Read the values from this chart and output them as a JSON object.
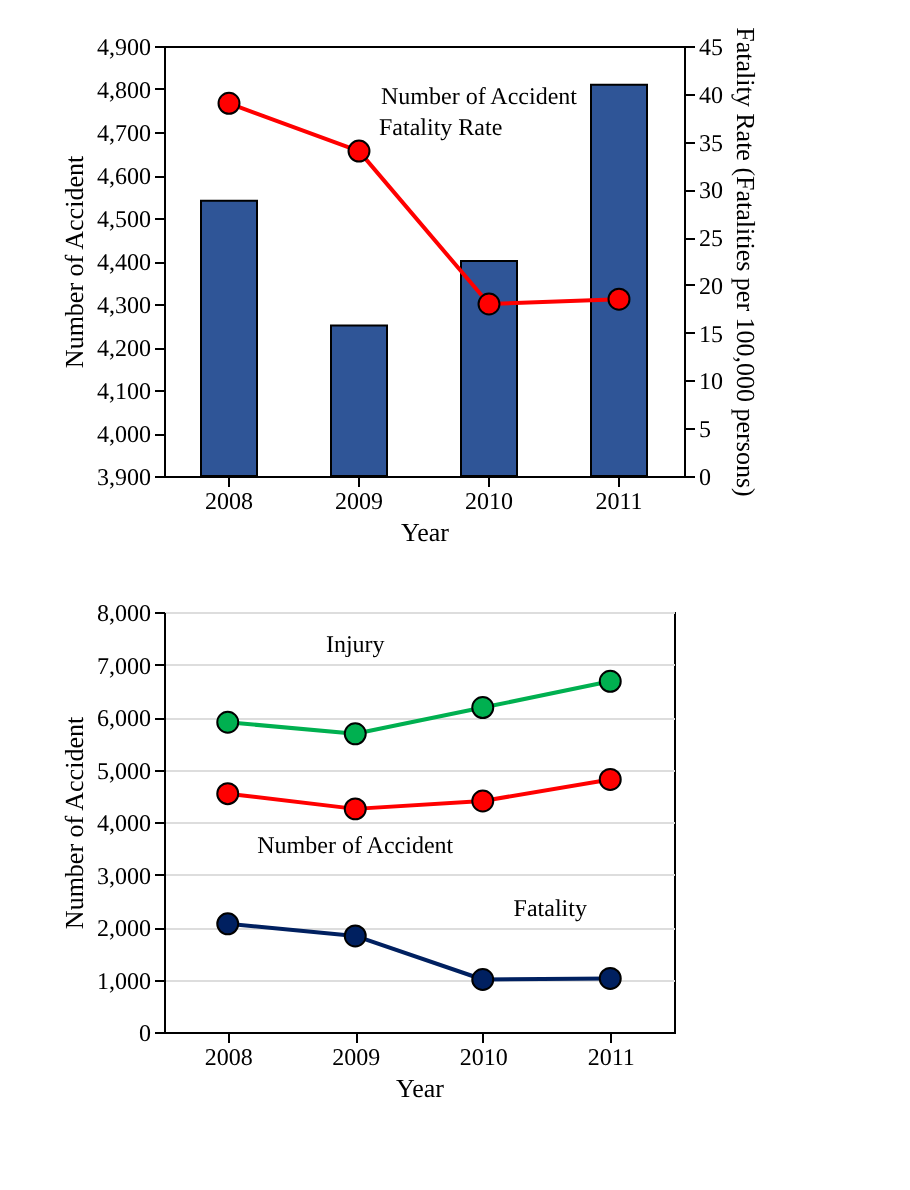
{
  "chart_data": [
    {
      "type": "bar",
      "categories": [
        "2008",
        "2009",
        "2010",
        "2011"
      ],
      "xlabel": "Year",
      "ylabel": "Number of Accident",
      "y2label": "Fatality Rate (Fatalities per 100,000 persons)",
      "series": [
        {
          "name": "Number of Accident",
          "type": "bar",
          "color": "#2f5597",
          "values": [
            4540,
            4250,
            4400,
            4810
          ]
        },
        {
          "name": "Fatality Rate",
          "type": "line",
          "axis": "y2",
          "color": "#ff0000",
          "marker": "circle",
          "values": [
            39,
            34,
            18,
            18.5
          ]
        }
      ],
      "ylim": [
        3900,
        4900
      ],
      "yticks": [
        {
          "value": 3900,
          "label": "3,900"
        },
        {
          "value": 4000,
          "label": "4,000"
        },
        {
          "value": 4100,
          "label": "4,100"
        },
        {
          "value": 4200,
          "label": "4,200"
        },
        {
          "value": 4300,
          "label": "4,300"
        },
        {
          "value": 4400,
          "label": "4,400"
        },
        {
          "value": 4500,
          "label": "4,500"
        },
        {
          "value": 4600,
          "label": "4,600"
        },
        {
          "value": 4700,
          "label": "4,700"
        },
        {
          "value": 4800,
          "label": "4,800"
        },
        {
          "value": 4900,
          "label": "4,900"
        }
      ],
      "y2lim": [
        0,
        45
      ],
      "y2ticks": [
        0,
        5,
        10,
        15,
        20,
        25,
        30,
        35,
        40,
        45
      ],
      "grid": false
    },
    {
      "type": "line",
      "categories": [
        "2008",
        "2009",
        "2010",
        "2011"
      ],
      "xlabel": "Year",
      "ylabel": "Number of Accident",
      "marker": "circle",
      "series": [
        {
          "name": "Injury",
          "color": "#00b050",
          "values": [
            5900,
            5680,
            6180,
            6680
          ]
        },
        {
          "name": "Number of Accident",
          "color": "#ff0000",
          "values": [
            4540,
            4250,
            4400,
            4810
          ]
        },
        {
          "name": "Fatality",
          "color": "#002060",
          "values": [
            2060,
            1830,
            1000,
            1020
          ]
        }
      ],
      "ylim": [
        0,
        8000
      ],
      "yticks": [
        0,
        {
          "value": 1000,
          "label": "1,000"
        },
        {
          "value": 2000,
          "label": "2,000"
        },
        {
          "value": 3000,
          "label": "3,000"
        },
        {
          "value": 4000,
          "label": "4,000"
        },
        {
          "value": 5000,
          "label": "5,000"
        },
        {
          "value": 6000,
          "label": "6,000"
        },
        {
          "value": 7000,
          "label": "7,000"
        },
        {
          "value": 8000,
          "label": "8,000"
        }
      ],
      "grid": "y"
    }
  ]
}
